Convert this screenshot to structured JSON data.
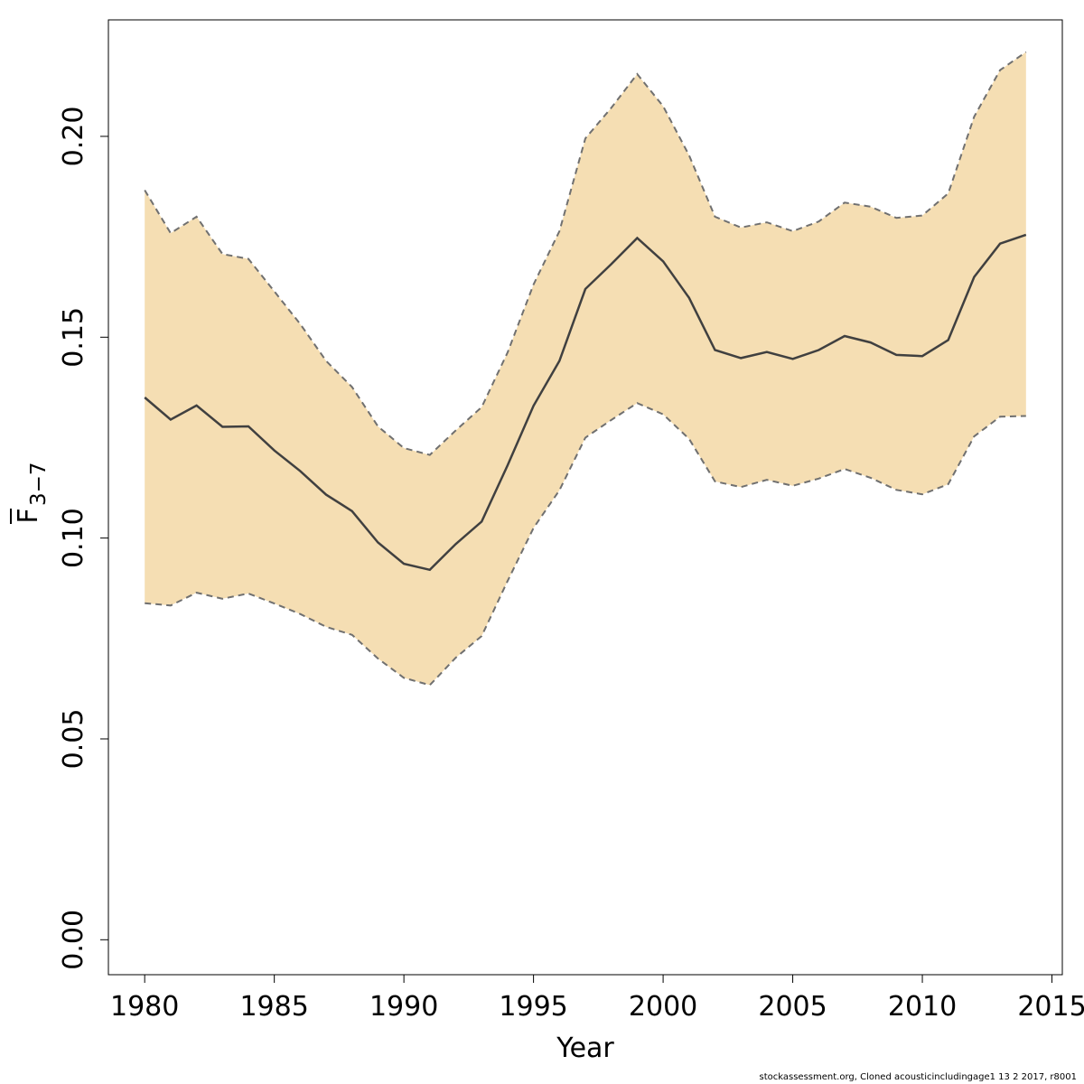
{
  "chart_data": {
    "type": "line",
    "xlabel": "Year",
    "ylabel": {
      "main": "F",
      "subscript": "3−7"
    },
    "xlim": [
      1978.6,
      2015.4
    ],
    "ylim": [
      -0.0087,
      0.229
    ],
    "xticks": [
      1980,
      1985,
      1990,
      1995,
      2000,
      2005,
      2010,
      2015
    ],
    "yticks": [
      0.0,
      0.05,
      0.1,
      0.15,
      0.2
    ],
    "ytick_labels": [
      "0.00",
      "0.05",
      "0.10",
      "0.15",
      "0.20"
    ],
    "colors": {
      "band": "#f5deb3",
      "estimate": "#404040",
      "bounds": "#707070"
    },
    "series": [
      {
        "x": [
          1980,
          1981,
          1982,
          1983,
          1984,
          1985,
          1986,
          1987,
          1988,
          1989,
          1990,
          1991,
          1992,
          1993,
          1994,
          1995,
          1996,
          1997,
          1998,
          1999,
          2000,
          2001,
          2002,
          2003,
          2004,
          2005,
          2006,
          2007,
          2008,
          2009,
          2010,
          2011,
          2012,
          2013,
          2014
        ],
        "estimate": [
          0.135,
          0.1295,
          0.133,
          0.1277,
          0.1278,
          0.1218,
          0.1167,
          0.1108,
          0.1067,
          0.0989,
          0.0936,
          0.0921,
          0.0985,
          0.1041,
          0.1181,
          0.1329,
          0.1441,
          0.162,
          0.1682,
          0.1747,
          0.1689,
          0.1598,
          0.1468,
          0.1448,
          0.1463,
          0.1446,
          0.1468,
          0.1503,
          0.1487,
          0.1456,
          0.1453,
          0.1493,
          0.165,
          0.1733,
          0.1755
        ],
        "lower": [
          0.0838,
          0.0832,
          0.0864,
          0.0849,
          0.0862,
          0.0837,
          0.0811,
          0.0779,
          0.0759,
          0.07,
          0.0652,
          0.0634,
          0.0702,
          0.0756,
          0.0893,
          0.1025,
          0.1119,
          0.125,
          0.1294,
          0.1336,
          0.1308,
          0.1247,
          0.1141,
          0.1127,
          0.1145,
          0.113,
          0.1148,
          0.1172,
          0.115,
          0.112,
          0.1109,
          0.1134,
          0.1253,
          0.1302,
          0.1304
        ],
        "upper": [
          0.1866,
          0.1759,
          0.18,
          0.1707,
          0.1695,
          0.1614,
          0.1533,
          0.1441,
          0.1376,
          0.1278,
          0.1224,
          0.1207,
          0.1268,
          0.1326,
          0.1462,
          0.1631,
          0.1764,
          0.1995,
          0.2071,
          0.2155,
          0.2075,
          0.1953,
          0.18,
          0.1773,
          0.1786,
          0.1764,
          0.1788,
          0.1835,
          0.1825,
          0.1797,
          0.1803,
          0.1858,
          0.2049,
          0.2165,
          0.221
        ]
      }
    ]
  },
  "footer": "stockassessment.org, Cloned  acousticincludingage1  13  2  2017, r8001"
}
